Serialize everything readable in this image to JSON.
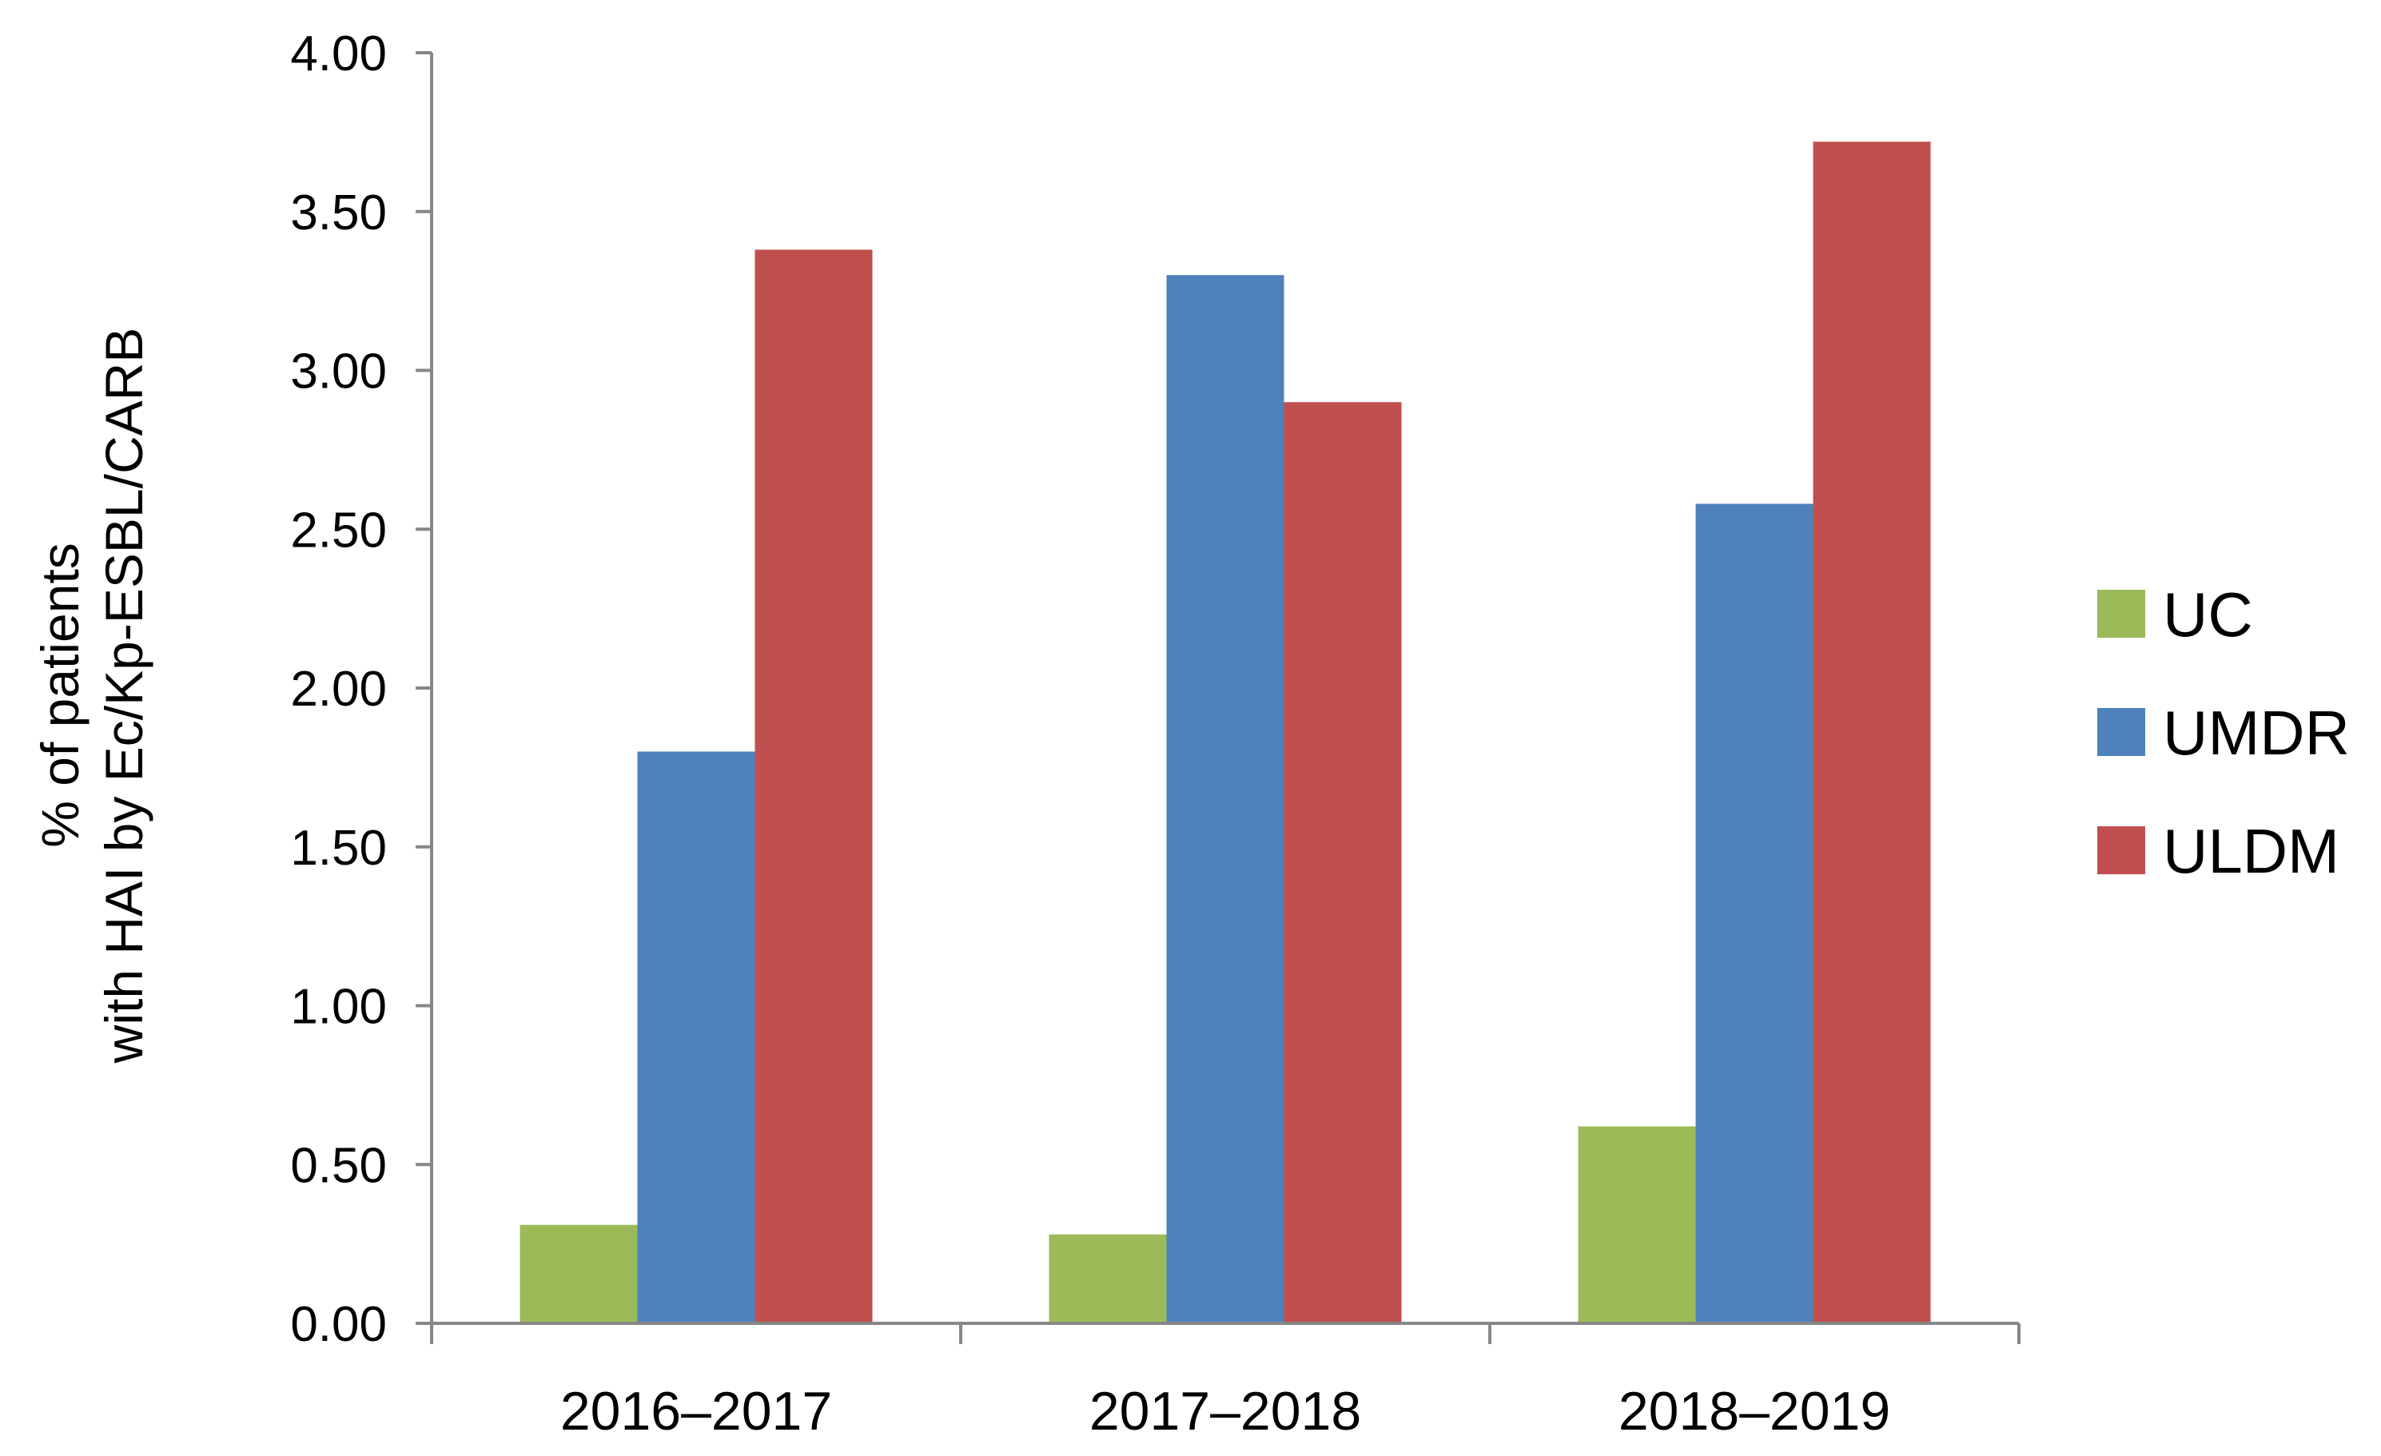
{
  "chart_data": {
    "type": "bar",
    "categories": [
      "2016–2017",
      "2017–2018",
      "2018–2019"
    ],
    "series": [
      {
        "name": "UC",
        "values": [
          0.31,
          0.28,
          0.62
        ],
        "color": "#9BBB59"
      },
      {
        "name": "UMDR",
        "values": [
          1.8,
          3.3,
          2.58
        ],
        "color": "#4F81BD"
      },
      {
        "name": "ULDM",
        "values": [
          3.38,
          2.9,
          3.72
        ],
        "color": "#C0504D"
      }
    ],
    "ylabel_lines": [
      "% of patients",
      "with HAI by Ec/Kp-ESBL/CARB"
    ],
    "ylim": [
      0,
      4
    ],
    "yticks": [
      "0.00",
      "0.50",
      "1.00",
      "1.50",
      "2.00",
      "2.50",
      "3.00",
      "3.50",
      "4.00"
    ],
    "grid": false,
    "legend": "right"
  }
}
